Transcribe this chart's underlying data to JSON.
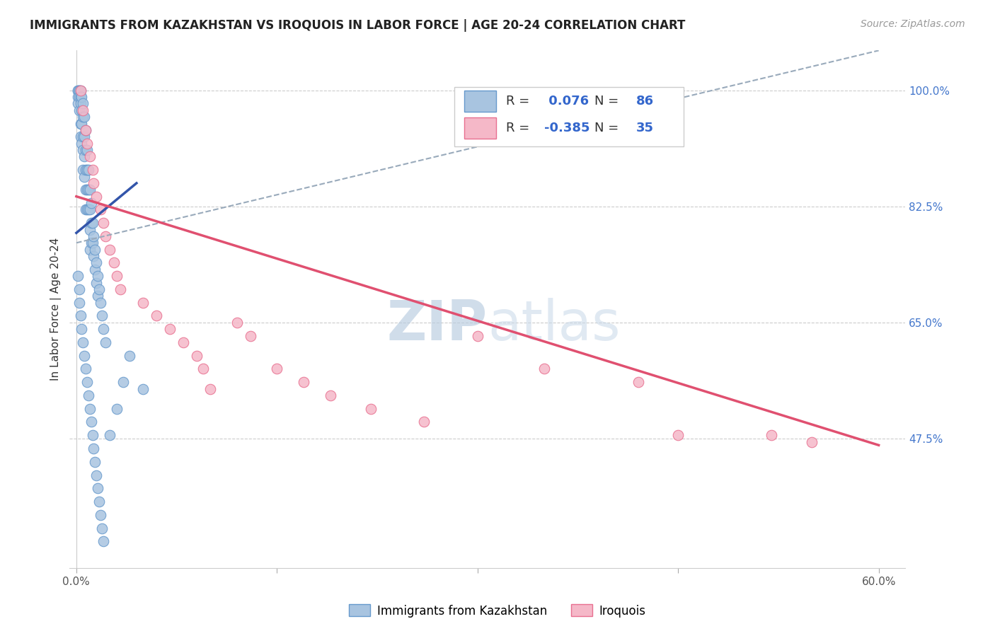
{
  "title": "IMMIGRANTS FROM KAZAKHSTAN VS IROQUOIS IN LABOR FORCE | AGE 20-24 CORRELATION CHART",
  "source": "Source: ZipAtlas.com",
  "ylabel": "In Labor Force | Age 20-24",
  "ytick_labels": [
    "100.0%",
    "82.5%",
    "65.0%",
    "47.5%"
  ],
  "ytick_values": [
    1.0,
    0.825,
    0.65,
    0.475
  ],
  "xtick_labels": [
    "0.0%",
    "60.0%"
  ],
  "xtick_positions": [
    0.0,
    0.6
  ],
  "xmin": -0.005,
  "xmax": 0.62,
  "ymin": 0.28,
  "ymax": 1.06,
  "blue_R": 0.076,
  "blue_N": 86,
  "pink_R": -0.385,
  "pink_N": 35,
  "blue_color": "#a8c4e0",
  "blue_edge": "#6699cc",
  "pink_color": "#f5b8c8",
  "pink_edge": "#e87090",
  "blue_line_color": "#3355aa",
  "pink_line_color": "#e05070",
  "dashed_line_color": "#99aabb",
  "watermark_color": "#ccd8e8",
  "legend_label_blue": "Immigrants from Kazakhstan",
  "legend_label_pink": "Iroquois",
  "blue_line_x0": 0.0,
  "blue_line_y0": 0.785,
  "blue_line_x1": 0.045,
  "blue_line_y1": 0.86,
  "dashed_line_x0": 0.0,
  "dashed_line_y0": 0.77,
  "dashed_line_x1": 0.6,
  "dashed_line_y1": 1.06,
  "pink_line_x0": 0.0,
  "pink_line_y0": 0.84,
  "pink_line_x1": 0.6,
  "pink_line_y1": 0.465,
  "blue_scatter_x": [
    0.001,
    0.001,
    0.001,
    0.001,
    0.002,
    0.002,
    0.002,
    0.002,
    0.003,
    0.003,
    0.003,
    0.003,
    0.003,
    0.004,
    0.004,
    0.004,
    0.004,
    0.005,
    0.005,
    0.005,
    0.005,
    0.005,
    0.006,
    0.006,
    0.006,
    0.006,
    0.007,
    0.007,
    0.007,
    0.007,
    0.007,
    0.008,
    0.008,
    0.008,
    0.008,
    0.009,
    0.009,
    0.009,
    0.01,
    0.01,
    0.01,
    0.01,
    0.011,
    0.011,
    0.011,
    0.012,
    0.012,
    0.013,
    0.013,
    0.014,
    0.014,
    0.015,
    0.015,
    0.016,
    0.016,
    0.017,
    0.018,
    0.019,
    0.02,
    0.022,
    0.001,
    0.002,
    0.002,
    0.003,
    0.004,
    0.005,
    0.006,
    0.007,
    0.008,
    0.009,
    0.01,
    0.011,
    0.012,
    0.013,
    0.014,
    0.015,
    0.016,
    0.017,
    0.018,
    0.019,
    0.02,
    0.025,
    0.03,
    0.035,
    0.04,
    0.05
  ],
  "blue_scatter_y": [
    1.0,
    1.0,
    0.99,
    0.98,
    1.0,
    1.0,
    0.99,
    0.97,
    1.0,
    0.99,
    0.98,
    0.95,
    0.93,
    0.99,
    0.97,
    0.95,
    0.92,
    0.98,
    0.96,
    0.93,
    0.91,
    0.88,
    0.96,
    0.93,
    0.9,
    0.87,
    0.94,
    0.91,
    0.88,
    0.85,
    0.82,
    0.91,
    0.88,
    0.85,
    0.82,
    0.88,
    0.85,
    0.82,
    0.85,
    0.82,
    0.79,
    0.76,
    0.83,
    0.8,
    0.77,
    0.8,
    0.77,
    0.78,
    0.75,
    0.76,
    0.73,
    0.74,
    0.71,
    0.72,
    0.69,
    0.7,
    0.68,
    0.66,
    0.64,
    0.62,
    0.72,
    0.7,
    0.68,
    0.66,
    0.64,
    0.62,
    0.6,
    0.58,
    0.56,
    0.54,
    0.52,
    0.5,
    0.48,
    0.46,
    0.44,
    0.42,
    0.4,
    0.38,
    0.36,
    0.34,
    0.32,
    0.48,
    0.52,
    0.56,
    0.6,
    0.55
  ],
  "pink_scatter_x": [
    0.003,
    0.005,
    0.007,
    0.008,
    0.01,
    0.012,
    0.013,
    0.015,
    0.018,
    0.02,
    0.022,
    0.025,
    0.028,
    0.03,
    0.033,
    0.05,
    0.06,
    0.07,
    0.08,
    0.09,
    0.095,
    0.1,
    0.12,
    0.13,
    0.15,
    0.17,
    0.19,
    0.22,
    0.26,
    0.3,
    0.35,
    0.42,
    0.45,
    0.52,
    0.55
  ],
  "pink_scatter_y": [
    1.0,
    0.97,
    0.94,
    0.92,
    0.9,
    0.88,
    0.86,
    0.84,
    0.82,
    0.8,
    0.78,
    0.76,
    0.74,
    0.72,
    0.7,
    0.68,
    0.66,
    0.64,
    0.62,
    0.6,
    0.58,
    0.55,
    0.65,
    0.63,
    0.58,
    0.56,
    0.54,
    0.52,
    0.5,
    0.63,
    0.58,
    0.56,
    0.48,
    0.48,
    0.47
  ]
}
